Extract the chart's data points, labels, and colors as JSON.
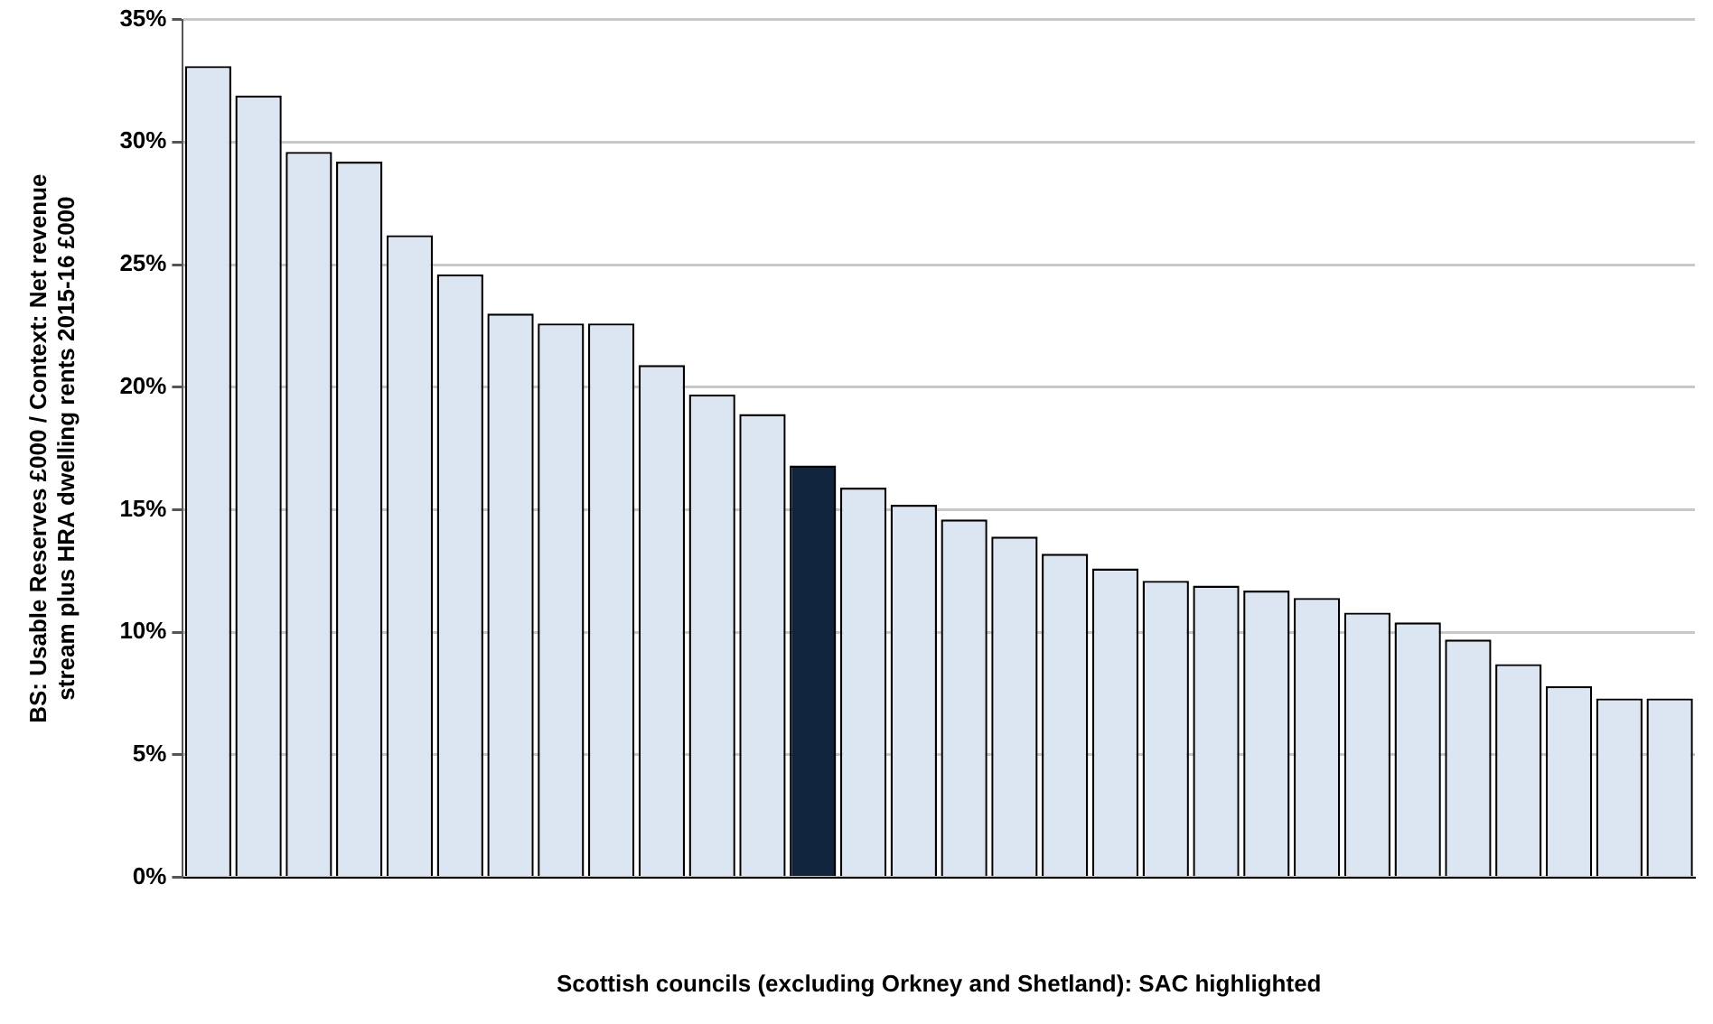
{
  "chart_data": {
    "type": "bar",
    "xlabel": "Scottish councils (excluding Orkney and Shetland): SAC highlighted",
    "ylabel": "BS: Usable Reserves £000 / Context: Net revenue stream plus HRA dwelling rents 2015-16 £000",
    "categories": [
      null,
      null,
      null,
      null,
      null,
      null,
      null,
      null,
      null,
      null,
      null,
      null,
      null,
      null,
      null,
      null,
      null,
      null,
      null,
      null,
      null,
      null,
      null,
      null,
      null,
      null,
      null,
      null,
      null,
      null
    ],
    "values": [
      33.1,
      31.9,
      29.6,
      29.2,
      26.2,
      24.6,
      23.0,
      22.6,
      22.6,
      20.9,
      19.7,
      18.9,
      16.8,
      15.9,
      15.2,
      14.6,
      13.9,
      13.2,
      12.6,
      12.1,
      11.9,
      11.7,
      11.4,
      10.8,
      10.4,
      9.7,
      8.7,
      7.8,
      7.3,
      7.3
    ],
    "colors": [
      "#dce6f2",
      "#dce6f2",
      "#dce6f2",
      "#dce6f2",
      "#dce6f2",
      "#dce6f2",
      "#dce6f2",
      "#dce6f2",
      "#dce6f2",
      "#dce6f2",
      "#dce6f2",
      "#dce6f2",
      "#10243e",
      "#dce6f2",
      "#dce6f2",
      "#dce6f2",
      "#dce6f2",
      "#dce6f2",
      "#dce6f2",
      "#dce6f2",
      "#dce6f2",
      "#dce6f2",
      "#dce6f2",
      "#dce6f2",
      "#dce6f2",
      "#dce6f2",
      "#dce6f2",
      "#dce6f2",
      "#dce6f2",
      "#dce6f2"
    ],
    "ylim": [
      0,
      35
    ],
    "yticks": [
      {
        "value": 0,
        "label": "0%"
      },
      {
        "value": 5,
        "label": "5%"
      },
      {
        "value": 10,
        "label": "10%"
      },
      {
        "value": 15,
        "label": "15%"
      },
      {
        "value": 20,
        "label": "20%"
      },
      {
        "value": 25,
        "label": "25%"
      },
      {
        "value": 30,
        "label": "30%"
      },
      {
        "value": 35,
        "label": "35%"
      }
    ],
    "grid": "y",
    "legend": false
  }
}
